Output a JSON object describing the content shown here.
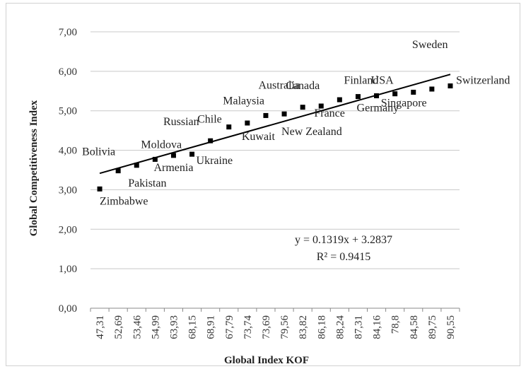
{
  "chart_data": {
    "type": "scatter",
    "title": "",
    "xlabel": "Global Index KOF",
    "ylabel": "Global Competitiveness Index",
    "ylim": [
      0,
      7
    ],
    "y_ticks": [
      "0,00",
      "1,00",
      "2,00",
      "3,00",
      "4,00",
      "5,00",
      "6,00",
      "7,00"
    ],
    "grid": "horizontal",
    "categories": [
      "47,31",
      "52,69",
      "53,46",
      "54,99",
      "63,93",
      "68,15",
      "68,91",
      "67,79",
      "73,74",
      "73,69",
      "79,56",
      "83,82",
      "86,18",
      "88,24",
      "87,31",
      "84,16",
      "78,8",
      "84,58",
      "89,75",
      "90,55"
    ],
    "values": [
      3.02,
      3.48,
      3.62,
      3.77,
      3.87,
      3.9,
      4.24,
      4.59,
      4.69,
      4.88,
      4.92,
      5.09,
      5.12,
      5.28,
      5.36,
      5.38,
      5.43,
      5.47,
      5.55,
      5.63
    ],
    "point_labels": [
      {
        "index": 0,
        "text": "Zimbabwe"
      },
      {
        "index": 1,
        "text": "Bolivia"
      },
      {
        "index": 2,
        "text": "Pakistan"
      },
      {
        "index": 3,
        "text": "Moldova"
      },
      {
        "index": 4,
        "text": "Armenia"
      },
      {
        "index": 5,
        "text": "Ukraine"
      },
      {
        "index": 6,
        "text": "Russian"
      },
      {
        "index": 7,
        "text": "Chile"
      },
      {
        "index": 8,
        "text": "Kuwait"
      },
      {
        "index": 9,
        "text": "Malaysia"
      },
      {
        "index": 10,
        "text": "New Zealand"
      },
      {
        "index": 11,
        "text": "Australia"
      },
      {
        "index": 12,
        "text": "Canada"
      },
      {
        "index": 13,
        "text": "France"
      },
      {
        "index": 14,
        "text": "Finland"
      },
      {
        "index": 15,
        "text": "Germany"
      },
      {
        "index": 16,
        "text": "USA"
      },
      {
        "index": 17,
        "text": "Singapore"
      },
      {
        "index": 18,
        "text": "Sweden"
      },
      {
        "index": 19,
        "text": "Switzerland"
      }
    ],
    "trendline": {
      "type": "linear",
      "slope": 0.1319,
      "intercept": 3.2837,
      "equation": "y = 0.1319x + 3.2837",
      "r_squared": "R² = 0.9415"
    },
    "colors": {
      "marker": "#000000",
      "trendline": "#000000",
      "grid": "#c8c8c8"
    }
  }
}
